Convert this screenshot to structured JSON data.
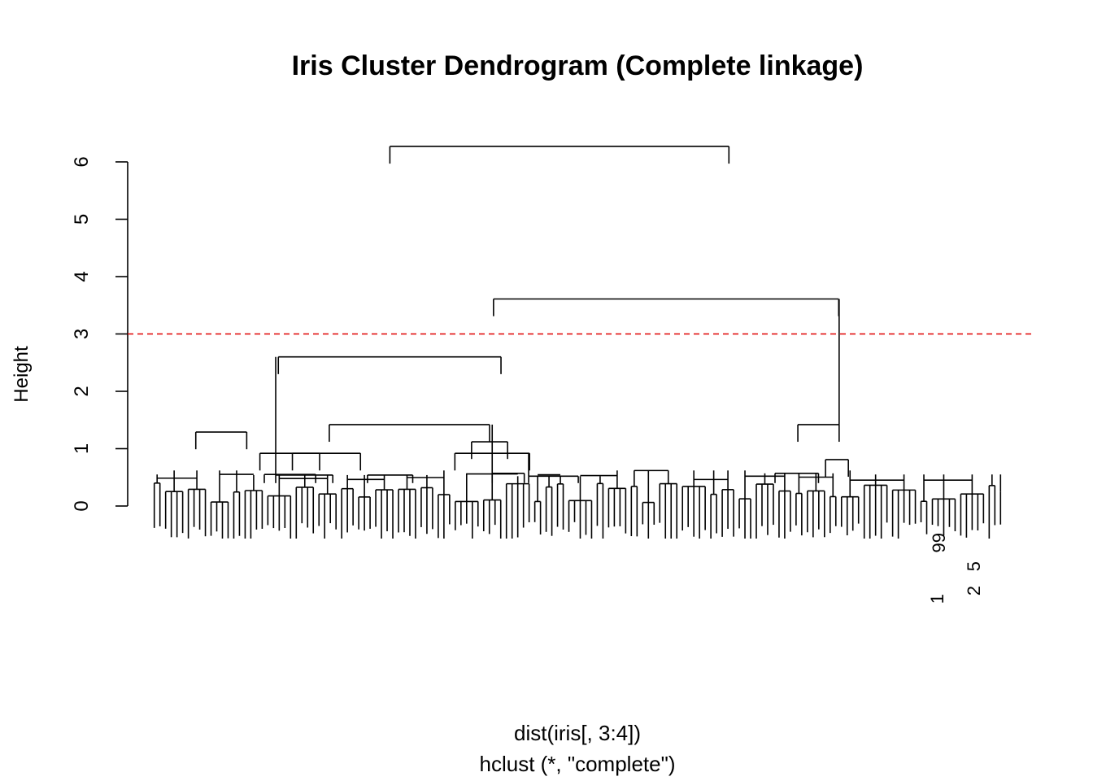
{
  "chart_data": {
    "type": "dendrogram",
    "title": "Iris Cluster Dendrogram (Complete linkage)",
    "ylabel": "Height",
    "xlabel": "dist(iris[, 3:4])",
    "sub": "hclust (*, \"complete\")",
    "ylim": [
      0,
      6.3
    ],
    "yticks": [
      0,
      1,
      2,
      3,
      4,
      5,
      6
    ],
    "cut_height": 3,
    "cut_color": "#e00000",
    "leaf_count": 150,
    "readable_leaf_labels": [
      "99",
      "5",
      "2",
      "1"
    ],
    "merges": [
      {
        "height": 6.27,
        "from": 0.2865,
        "to": 0.6725
      },
      {
        "height": 3.61,
        "from": 0.4045,
        "to": 0.7975
      },
      {
        "height": 2.6,
        "from": 0.1595,
        "to": 0.413
      },
      {
        "height": 1.42,
        "from": 0.2175,
        "to": 0.4
      },
      {
        "height": 1.42,
        "from": 0.751,
        "to": 0.798
      },
      {
        "height": 1.29,
        "from": 0.0655,
        "to": 0.1235
      },
      {
        "height": 1.12,
        "from": 0.3795,
        "to": 0.4205
      },
      {
        "height": 0.92,
        "from": 0.1385,
        "to": 0.2065
      },
      {
        "height": 0.92,
        "from": 0.1755,
        "to": 0.253
      },
      {
        "height": 0.92,
        "from": 0.3605,
        "to": 0.4455
      },
      {
        "height": 0.81,
        "from": 0.7825,
        "to": 0.8085
      },
      {
        "height": 0.57,
        "from": 0.725,
        "to": 0.7745
      },
      {
        "height": 0.57,
        "from": 0.403,
        "to": 0.4395
      },
      {
        "height": 0.55,
        "from": 0.1435,
        "to": 0.202
      },
      {
        "height": 0.54,
        "from": 0.261,
        "to": 0.3125
      },
      {
        "height": 0.54,
        "from": 0.1565,
        "to": 0.2215
      },
      {
        "height": 0.52,
        "from": 0.4445,
        "to": 0.501
      }
    ]
  }
}
